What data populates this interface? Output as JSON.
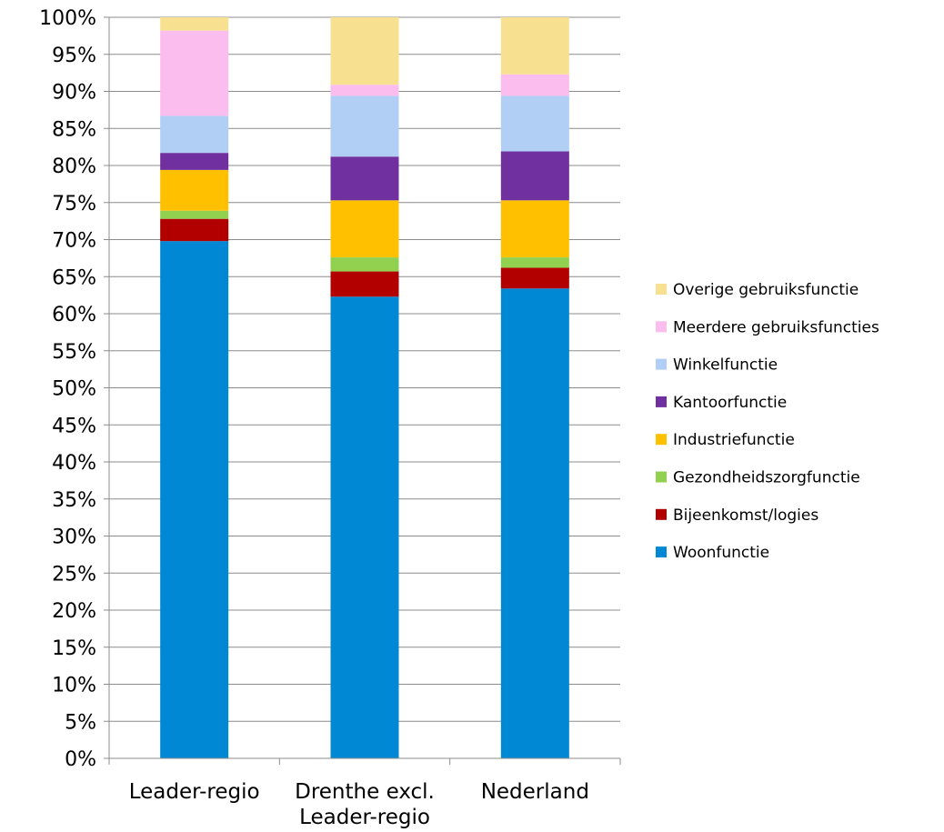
{
  "chart_data": {
    "type": "bar",
    "stacked": true,
    "percent_axis": true,
    "categories": [
      "Leader-regio",
      "Drenthe excl.\nLeader-regio",
      "Nederland"
    ],
    "series": [
      {
        "name": "Woonfunctie",
        "color": "#0088d4",
        "values": [
          69.8,
          62.3,
          63.4
        ]
      },
      {
        "name": "Bijeenkomst/logies",
        "color": "#b20000",
        "values": [
          3.0,
          3.4,
          2.8
        ]
      },
      {
        "name": "Gezondheidszorgfunctie",
        "color": "#92d050",
        "values": [
          1.1,
          1.9,
          1.4
        ]
      },
      {
        "name": "Industriefunctie",
        "color": "#ffc000",
        "values": [
          5.5,
          7.7,
          7.7
        ]
      },
      {
        "name": "Kantoorfunctie",
        "color": "#7030a0",
        "values": [
          2.3,
          5.9,
          6.6
        ]
      },
      {
        "name": "Winkelfunctie",
        "color": "#b1cef5",
        "values": [
          5.0,
          8.2,
          7.5
        ]
      },
      {
        "name": "Meerdere gebruiksfuncties",
        "color": "#fbbcee",
        "values": [
          11.5,
          1.5,
          2.9
        ]
      },
      {
        "name": "Overige gebruiksfunctie",
        "color": "#f7e190",
        "values": [
          1.8,
          9.1,
          7.7
        ]
      }
    ],
    "y_ticks": [
      "0%",
      "5%",
      "10%",
      "15%",
      "20%",
      "25%",
      "30%",
      "35%",
      "40%",
      "45%",
      "50%",
      "55%",
      "60%",
      "65%",
      "70%",
      "75%",
      "80%",
      "85%",
      "90%",
      "95%",
      "100%"
    ],
    "ylim": [
      0,
      100
    ],
    "grid": true,
    "legend_position": "right",
    "legend_order": [
      "Overige gebruiksfunctie",
      "Meerdere gebruiksfuncties",
      "Winkelfunctie",
      "Kantoorfunctie",
      "Industriefunctie",
      "Gezondheidszorgfunctie",
      "Bijeenkomst/logies",
      "Woonfunctie"
    ],
    "title": "",
    "xlabel": "",
    "ylabel": ""
  }
}
